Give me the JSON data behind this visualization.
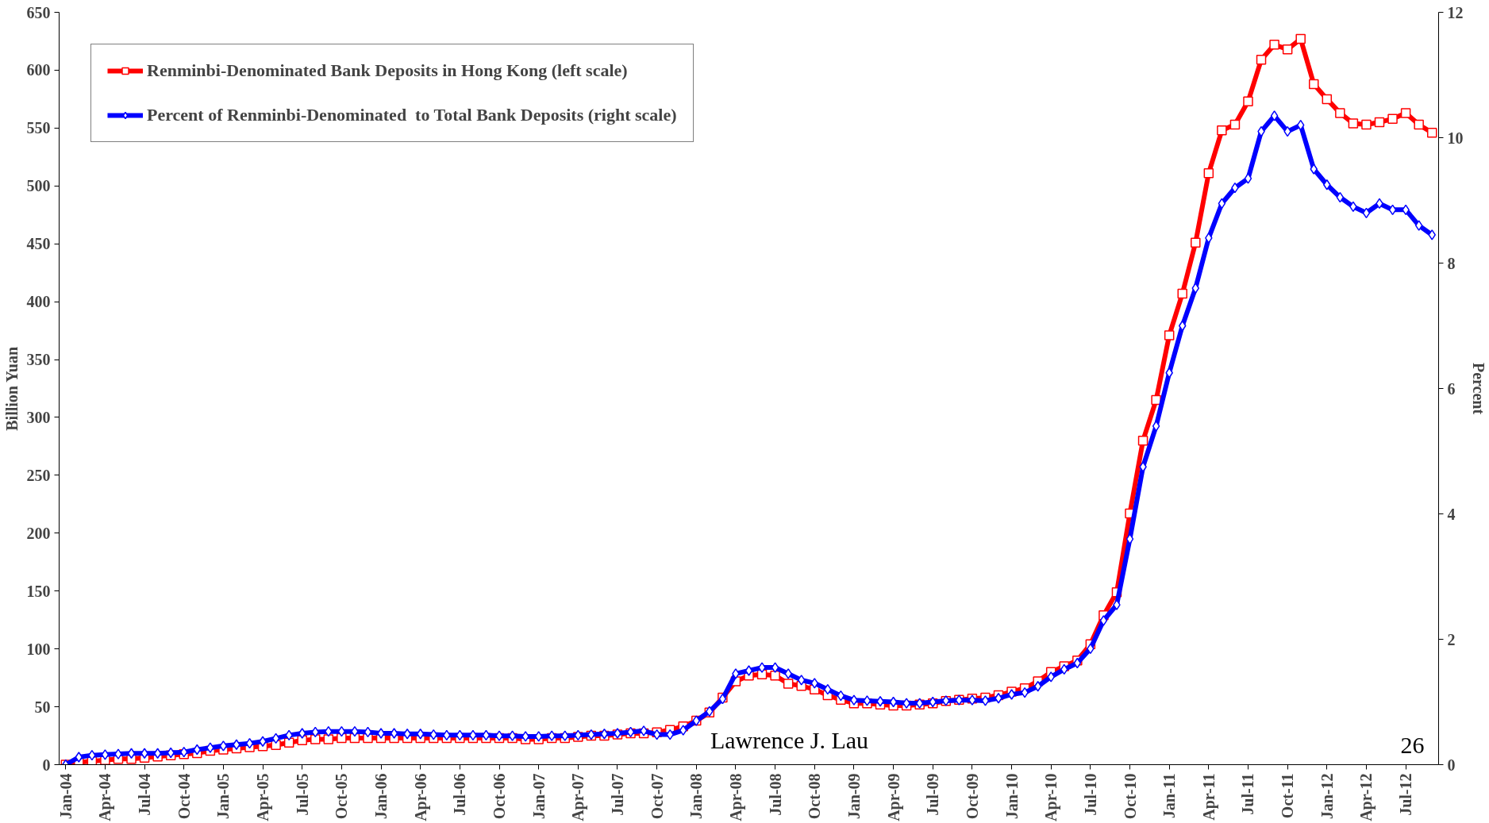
{
  "chart_data": {
    "type": "line",
    "ylabel": "Billion Yuan",
    "y2label": "Percent",
    "categories": [
      "Jan-04",
      null,
      null,
      "Apr-04",
      null,
      null,
      "Jul-04",
      null,
      null,
      "Oct-04",
      null,
      null,
      "Jan-05",
      null,
      null,
      "Apr-05",
      null,
      null,
      "Jul-05",
      null,
      null,
      "Oct-05",
      null,
      null,
      "Jan-06",
      null,
      null,
      "Apr-06",
      null,
      null,
      "Jul-06",
      null,
      null,
      "Oct-06",
      null,
      null,
      "Jan-07",
      null,
      null,
      "Apr-07",
      null,
      null,
      "Jul-07",
      null,
      null,
      "Oct-07",
      null,
      null,
      "Jan-08",
      null,
      null,
      "Apr-08",
      null,
      null,
      "Jul-08",
      null,
      null,
      "Oct-08",
      null,
      null,
      "Jan-09",
      null,
      null,
      "Apr-09",
      null,
      null,
      "Jul-09",
      null,
      null,
      "Oct-09",
      null,
      null,
      "Jan-10",
      null,
      null,
      "Apr-10",
      null,
      null,
      "Jul-10",
      null,
      null,
      "Oct-10",
      null,
      null,
      "Jan-11",
      null,
      null,
      "Apr-11",
      null,
      null,
      "Jul-11",
      null,
      null,
      "Oct-11",
      null,
      null,
      "Jan-12",
      null,
      null,
      "Apr-12",
      null,
      null,
      "Jul-12",
      null,
      null
    ],
    "series": [
      {
        "name": "Renminbi-Denominated Bank Deposits in Hong Kong (left scale)",
        "color": "#ff0000",
        "marker": "square",
        "values": [
          0,
          2,
          3,
          4,
          5,
          5,
          6,
          7,
          8,
          9,
          10,
          12,
          13,
          14,
          15,
          16,
          17,
          19,
          21,
          22,
          22,
          23,
          23,
          23,
          23,
          23,
          23,
          23,
          23,
          23,
          23,
          23,
          23,
          23,
          23,
          22,
          22,
          23,
          23,
          24,
          25,
          25,
          26,
          27,
          27,
          28,
          30,
          33,
          38,
          45,
          58,
          72,
          77,
          78,
          77,
          70,
          68,
          65,
          60,
          56,
          53,
          53,
          52,
          51,
          51,
          52,
          53,
          55,
          56,
          57,
          58,
          60,
          63,
          66,
          72,
          80,
          85,
          90,
          104,
          129,
          149,
          217,
          280,
          315,
          371,
          407,
          451,
          511,
          548,
          553,
          573,
          609,
          622,
          618,
          627,
          588,
          575,
          563,
          554,
          553,
          555,
          558,
          563,
          553,
          546
        ]
      },
      {
        "name": "Percent of Renminbi-Denominated  to Total Bank Deposits (right scale)",
        "color": "#0000ff",
        "marker": "diamond",
        "axis": "y2",
        "values": [
          0,
          0.12,
          0.15,
          0.16,
          0.17,
          0.18,
          0.18,
          0.18,
          0.19,
          0.2,
          0.24,
          0.27,
          0.3,
          0.32,
          0.34,
          0.37,
          0.42,
          0.47,
          0.5,
          0.52,
          0.53,
          0.53,
          0.53,
          0.52,
          0.5,
          0.5,
          0.49,
          0.49,
          0.48,
          0.47,
          0.47,
          0.47,
          0.47,
          0.46,
          0.46,
          0.45,
          0.45,
          0.46,
          0.46,
          0.47,
          0.48,
          0.49,
          0.5,
          0.52,
          0.54,
          0.48,
          0.48,
          0.55,
          0.7,
          0.85,
          1.05,
          1.45,
          1.5,
          1.55,
          1.55,
          1.45,
          1.35,
          1.3,
          1.2,
          1.1,
          1.03,
          1.02,
          1.01,
          1.0,
          0.98,
          0.98,
          1.0,
          1.02,
          1.03,
          1.03,
          1.02,
          1.06,
          1.12,
          1.15,
          1.25,
          1.4,
          1.52,
          1.62,
          1.85,
          2.3,
          2.55,
          3.6,
          4.75,
          5.4,
          6.25,
          7.0,
          7.6,
          8.4,
          8.95,
          9.2,
          9.35,
          10.1,
          10.35,
          10.1,
          10.2,
          9.5,
          9.25,
          9.05,
          8.9,
          8.8,
          8.95,
          8.85,
          8.85,
          8.6,
          8.45
        ]
      }
    ],
    "ylim": [
      0,
      650
    ],
    "yticks": [
      0,
      50,
      100,
      150,
      200,
      250,
      300,
      350,
      400,
      450,
      500,
      550,
      600,
      650
    ],
    "y2lim": [
      0,
      12
    ],
    "y2ticks": [
      0,
      2,
      4,
      6,
      8,
      10,
      12
    ],
    "legend": "top left",
    "grid": false,
    "annotations": [
      "Lawrence J. Lau",
      "26"
    ]
  }
}
